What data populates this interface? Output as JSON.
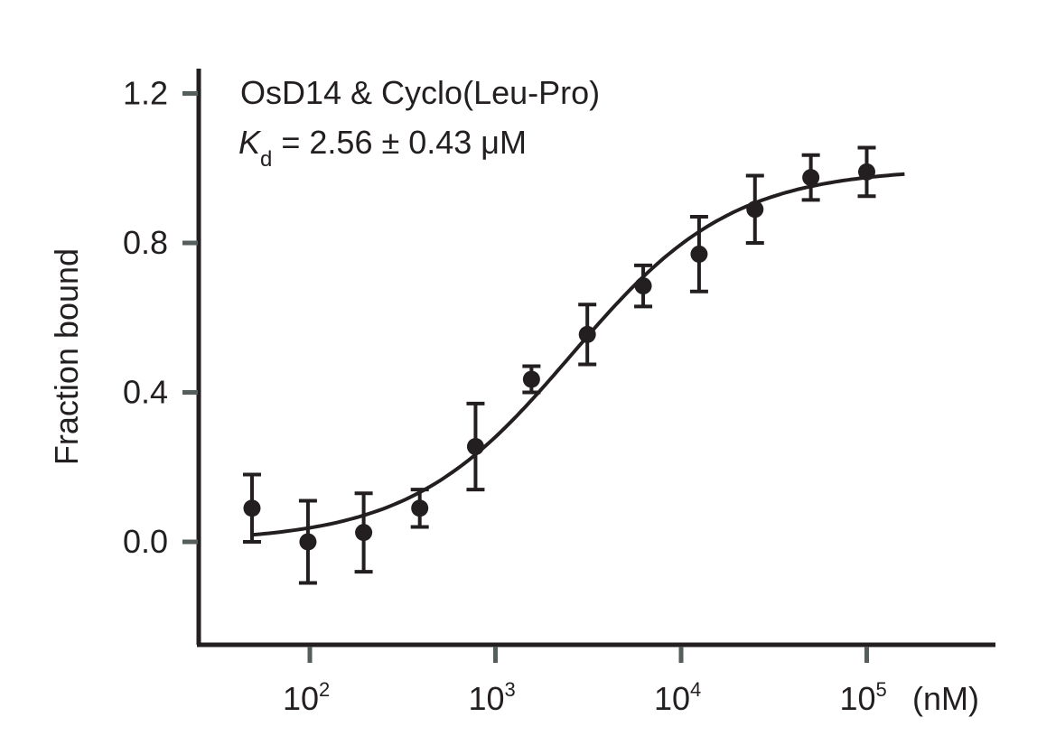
{
  "chart_data": {
    "type": "scatter",
    "annotation": {
      "line1": "OsD14 & Cyclo(Leu-Pro)",
      "kd_symbol": "K",
      "kd_subscript": "d",
      "kd_rest": " = 2.56 ± 0.43 μM"
    },
    "ylabel": "Fraction bound",
    "xunit": "(nM)",
    "xscale": "log",
    "xlim": [
      32,
      500000
    ],
    "ylim": [
      -0.27,
      1.28
    ],
    "y_ticks": [
      "0.0",
      "0.4",
      "0.8",
      "1.2"
    ],
    "x_ticks": [
      {
        "value": 100,
        "base": "10",
        "exp": "2"
      },
      {
        "value": 1000,
        "base": "10",
        "exp": "3"
      },
      {
        "value": 10000,
        "base": "10",
        "exp": "4"
      },
      {
        "value": 100000,
        "base": "10",
        "exp": "5"
      }
    ],
    "points": [
      {
        "x": 48.8,
        "y": 0.09,
        "err": 0.09
      },
      {
        "x": 97.7,
        "y": 0.0,
        "err": 0.11
      },
      {
        "x": 195,
        "y": 0.025,
        "err": 0.105
      },
      {
        "x": 391,
        "y": 0.09,
        "err": 0.05
      },
      {
        "x": 781,
        "y": 0.255,
        "err": 0.115
      },
      {
        "x": 1563,
        "y": 0.435,
        "err": 0.035
      },
      {
        "x": 3125,
        "y": 0.555,
        "err": 0.08
      },
      {
        "x": 6250,
        "y": 0.685,
        "err": 0.055
      },
      {
        "x": 12500,
        "y": 0.77,
        "err": 0.1
      },
      {
        "x": 25000,
        "y": 0.89,
        "err": 0.09
      },
      {
        "x": 50000,
        "y": 0.975,
        "err": 0.06
      },
      {
        "x": 100000,
        "y": 0.99,
        "err": 0.065
      }
    ],
    "fit": {
      "model": "binding",
      "kd_nM": 2560,
      "bottom": 0.0,
      "top": 1.0,
      "x_range": [
        48.8,
        160000
      ]
    },
    "grid": false,
    "legend": "none"
  }
}
